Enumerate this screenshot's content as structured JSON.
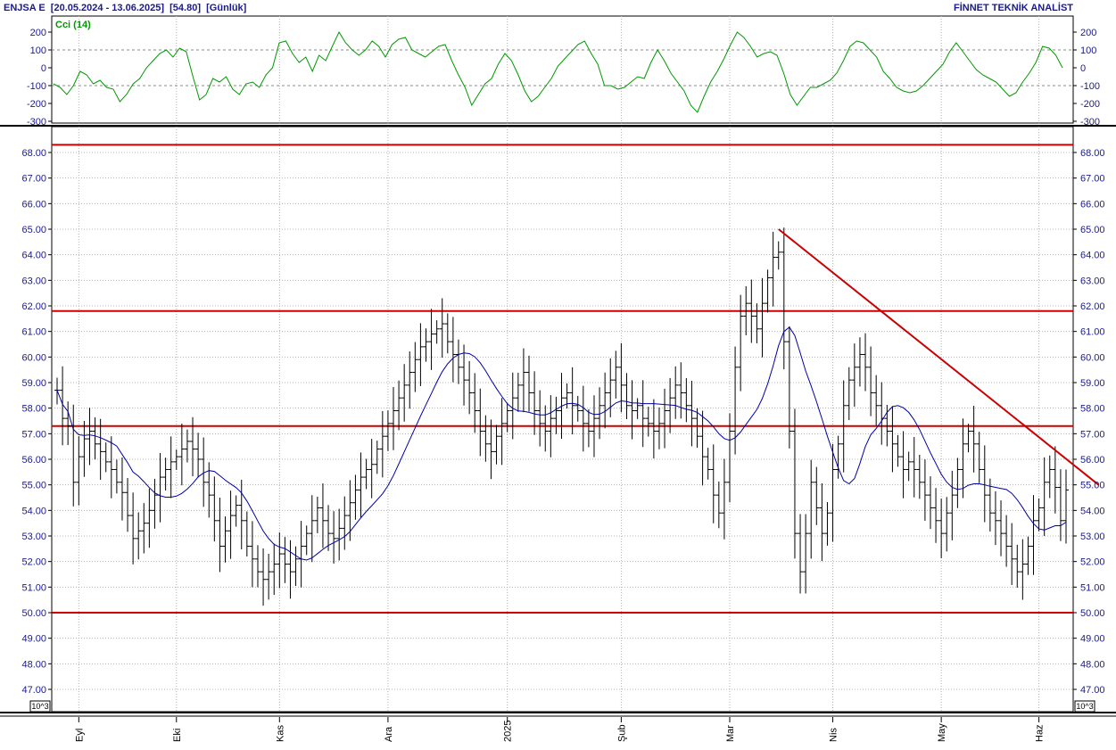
{
  "header": {
    "symbol": "ENJSA E",
    "date_range": "[20.05.2024 - 13.06.2025]",
    "last_price": "[54.80]",
    "period": "[Günlük]",
    "vendor": "FİNNET TEKNİK ANALİST"
  },
  "unit_label": "10^3",
  "colors": {
    "candles": "#000000",
    "moving_average": "#0000aa",
    "cci": "#009900",
    "levels": "#cc0000",
    "grid": "#b0b0b0",
    "axis_text": "#1a1a8c"
  },
  "chart_data": [
    {
      "type": "line",
      "title": "Cci (14)",
      "yticks": [
        200,
        100,
        0,
        -100,
        -200,
        -300
      ],
      "ylim": [
        -300,
        240
      ],
      "reference_lines": [
        100,
        -100
      ],
      "values": [
        -90,
        -110,
        -150,
        -100,
        -20,
        -40,
        -90,
        -70,
        -110,
        -120,
        -190,
        -150,
        -90,
        -60,
        0,
        40,
        80,
        100,
        60,
        110,
        90,
        -50,
        -180,
        -150,
        -60,
        -80,
        -50,
        -120,
        -150,
        -90,
        -80,
        -110,
        -40,
        0,
        140,
        150,
        80,
        30,
        60,
        -20,
        70,
        40,
        120,
        200,
        140,
        100,
        70,
        100,
        150,
        120,
        60,
        130,
        160,
        170,
        100,
        80,
        60,
        90,
        120,
        130,
        40,
        -40,
        -110,
        -210,
        -150,
        -90,
        -60,
        20,
        80,
        40,
        -40,
        -130,
        -190,
        -160,
        -110,
        -60,
        10,
        50,
        90,
        130,
        150,
        80,
        20,
        -100,
        -100,
        -120,
        -110,
        -80,
        -50,
        -60,
        30,
        100,
        40,
        -30,
        -80,
        -130,
        -210,
        -250,
        -160,
        -80,
        -20,
        50,
        130,
        200,
        170,
        120,
        60,
        80,
        90,
        70,
        -30,
        -150,
        -210,
        -160,
        -110,
        -110,
        -90,
        -70,
        -30,
        40,
        120,
        150,
        140,
        100,
        60,
        -20,
        -60,
        -110,
        -130,
        -140,
        -130,
        -100,
        -60,
        -20,
        20,
        90,
        140,
        90,
        40,
        -10,
        -40,
        -60,
        -80,
        -120,
        -160,
        -140,
        -80,
        -30,
        30,
        120,
        110,
        70,
        0
      ]
    },
    {
      "type": "bar",
      "subtype": "ohlc",
      "x_labels": [
        "Eyl",
        "Eki",
        "Kas",
        "Ara",
        "2025",
        "Şub",
        "Mar",
        "Nis",
        "May",
        "Haz"
      ],
      "yticks": [
        "68.00",
        "67.00",
        "66.00",
        "65.00",
        "64.00",
        "63.00",
        "62.00",
        "61.00",
        "60.00",
        "59.00",
        "58.00",
        "57.00",
        "56.00",
        "55.00",
        "54.00",
        "53.00",
        "52.00",
        "51.00",
        "50.00",
        "49.00",
        "48.00",
        "47.00"
      ],
      "ylim": [
        46.5,
        69.0
      ],
      "horizontal_levels": [
        68.3,
        61.8,
        57.3,
        50.0
      ],
      "trendline": {
        "start": [
          "Mar",
          65.0
        ],
        "end": [
          "Haz",
          55.0
        ]
      },
      "close": [
        58.7,
        57.6,
        57.3,
        55.1,
        56.1,
        56.8,
        57.1,
        56.6,
        56.3,
        55.9,
        55.6,
        55.1,
        54.7,
        53.8,
        52.9,
        53.2,
        53.5,
        54.0,
        54.6,
        55.3,
        55.6,
        55.9,
        56.1,
        56.4,
        56.7,
        56.4,
        56.0,
        55.1,
        54.6,
        53.6,
        52.6,
        53.2,
        53.8,
        54.2,
        53.6,
        52.6,
        52.1,
        51.6,
        51.3,
        51.6,
        51.9,
        52.3,
        51.9,
        51.6,
        52.1,
        52.6,
        53.1,
        53.6,
        54.1,
        53.6,
        53.1,
        52.9,
        53.3,
        53.8,
        54.3,
        54.8,
        55.3,
        55.6,
        55.8,
        56.4,
        56.9,
        57.4,
        57.9,
        58.4,
        58.9,
        59.4,
        59.9,
        60.4,
        60.6,
        60.9,
        61.1,
        61.3,
        60.6,
        60.1,
        59.6,
        59.1,
        58.6,
        57.9,
        57.1,
        56.6,
        56.3,
        56.9,
        57.4,
        57.9,
        58.4,
        58.9,
        59.4,
        58.6,
        57.9,
        57.4,
        57.1,
        57.6,
        57.9,
        58.4,
        58.6,
        58.1,
        57.9,
        57.4,
        57.1,
        57.6,
        58.1,
        58.6,
        59.1,
        59.6,
        58.9,
        58.1,
        57.9,
        58.1,
        57.6,
        57.4,
        57.1,
        57.4,
        57.9,
        58.4,
        58.9,
        58.6,
        58.1,
        57.6,
        56.9,
        56.1,
        55.6,
        54.6,
        53.9,
        55.1,
        57.1,
        59.6,
        61.6,
        62.1,
        61.6,
        61.1,
        62.1,
        63.1,
        63.9,
        64.1,
        60.6,
        57.1,
        53.1,
        51.6,
        53.1,
        55.1,
        54.1,
        53.1,
        53.9,
        55.6,
        56.6,
        58.1,
        59.1,
        59.6,
        60.1,
        59.6,
        58.6,
        58.1,
        57.6,
        57.1,
        56.6,
        56.1,
        55.6,
        55.9,
        55.6,
        55.1,
        54.6,
        54.1,
        53.6,
        53.1,
        53.9,
        54.6,
        55.6,
        56.6,
        57.1,
        56.6,
        55.6,
        54.6,
        53.9,
        53.6,
        53.1,
        52.6,
        52.1,
        51.6,
        51.9,
        52.6,
        53.6,
        54.1,
        55.1,
        55.6,
        54.9,
        53.6,
        54.8
      ]
    }
  ]
}
